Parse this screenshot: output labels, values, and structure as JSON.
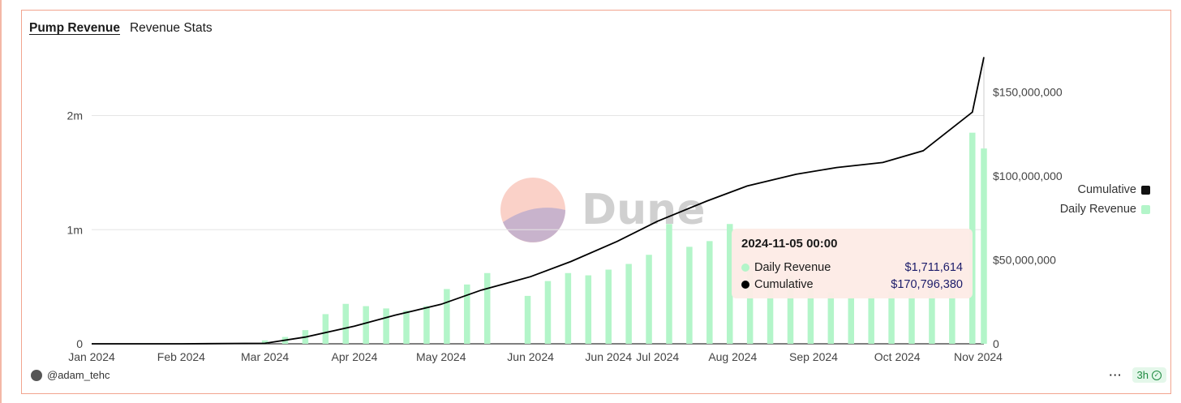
{
  "tabs": {
    "active": "Pump Revenue",
    "other": "Revenue Stats"
  },
  "watermark": "Dune",
  "legend": {
    "cumulative": "Cumulative",
    "daily": "Daily Revenue"
  },
  "tooltip": {
    "title": "2024-11-05 00:00",
    "daily_label": "Daily Revenue",
    "daily_value": "$1,711,614",
    "cum_label": "Cumulative",
    "cum_value": "$170,796,380"
  },
  "footer": {
    "user": "@adam_tehc",
    "age": "3h",
    "menu": "···"
  },
  "colors": {
    "bar": "#b3f5c9",
    "line": "#000000",
    "accent": "#f2a48f"
  },
  "chart_data": {
    "type": "bar",
    "x_ticks": [
      "Jan 2024",
      "Feb 2024",
      "Mar 2024",
      "Apr 2024",
      "May 2024",
      "Jun 2024",
      "Jun 2024",
      "Jul 2024",
      "Aug 2024",
      "Sep 2024",
      "Oct 2024",
      "Nov 2024"
    ],
    "y_left_ticks": [
      "0",
      "1m",
      "2m"
    ],
    "y_right_ticks": [
      "0",
      "$50,000,000",
      "$100,000,000",
      "$150,000,000"
    ],
    "ylim_left": [
      0,
      2500000
    ],
    "ylim_right": [
      0,
      170000000
    ],
    "series": [
      {
        "name": "Daily Revenue",
        "axis": "left",
        "type": "bar",
        "x": [
          "2024-01-19",
          "2024-01-26",
          "2024-02-02",
          "2024-02-09",
          "2024-02-16",
          "2024-02-23",
          "2024-03-01",
          "2024-03-08",
          "2024-03-15",
          "2024-03-22",
          "2024-03-29",
          "2024-04-05",
          "2024-04-12",
          "2024-04-19",
          "2024-04-26",
          "2024-05-03",
          "2024-05-10",
          "2024-05-17",
          "2024-05-24",
          "2024-05-31",
          "2024-06-07",
          "2024-06-14",
          "2024-06-21",
          "2024-06-28",
          "2024-07-05",
          "2024-07-12",
          "2024-07-19",
          "2024-07-26",
          "2024-08-02",
          "2024-08-09",
          "2024-08-16",
          "2024-08-23",
          "2024-08-30",
          "2024-09-06",
          "2024-09-13",
          "2024-09-20",
          "2024-09-27",
          "2024-10-04",
          "2024-10-11",
          "2024-10-18",
          "2024-10-25",
          "2024-11-01",
          "2024-11-05"
        ],
        "values": [
          5000,
          5000,
          5000,
          5000,
          5000,
          8000,
          30000,
          60000,
          120000,
          260000,
          350000,
          330000,
          310000,
          290000,
          330000,
          480000,
          520000,
          620000,
          0,
          420000,
          550000,
          620000,
          600000,
          650000,
          700000,
          780000,
          1050000,
          850000,
          900000,
          1050000,
          650000,
          580000,
          600000,
          500000,
          450000,
          400000,
          420000,
          460000,
          480000,
          600000,
          650000,
          1850000,
          1711614
        ]
      },
      {
        "name": "Cumulative",
        "axis": "right",
        "type": "line",
        "x": [
          "2024-01-01",
          "2024-02-01",
          "2024-03-01",
          "2024-03-15",
          "2024-04-01",
          "2024-04-15",
          "2024-05-01",
          "2024-05-15",
          "2024-06-01",
          "2024-06-15",
          "2024-07-01",
          "2024-07-15",
          "2024-08-01",
          "2024-08-15",
          "2024-09-01",
          "2024-09-15",
          "2024-10-01",
          "2024-10-15",
          "2024-11-01",
          "2024-11-05"
        ],
        "values": [
          0,
          0,
          300000,
          4000000,
          10500000,
          17000000,
          23500000,
          32000000,
          40000000,
          49000000,
          61000000,
          73000000,
          85000000,
          94000000,
          101000000,
          105000000,
          108000000,
          115000000,
          138000000,
          170796380
        ]
      }
    ]
  }
}
